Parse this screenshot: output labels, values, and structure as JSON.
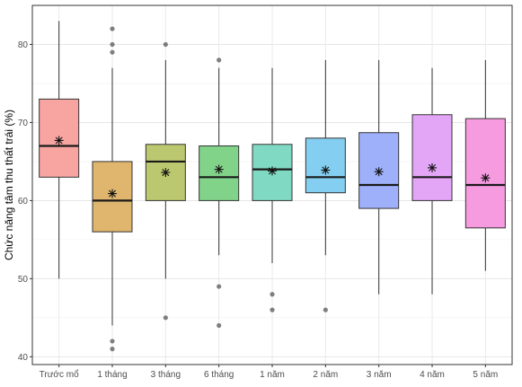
{
  "chart_data": {
    "type": "box",
    "title": "",
    "xlabel": "",
    "ylabel": "Chức năng tâm thu thất trái (%)",
    "ylim": [
      39,
      85
    ],
    "yticks": [
      40,
      50,
      60,
      70,
      80
    ],
    "grid": true,
    "legend": "none",
    "mean_marker": "asterisk",
    "categories": [
      "Trước mổ",
      "1 tháng",
      "3 tháng",
      "6 tháng",
      "1 năm",
      "2 năm",
      "3 năm",
      "4 năm",
      "5 năm"
    ],
    "colors": [
      "#f8a5a2",
      "#e0b56e",
      "#bcc86f",
      "#82d38a",
      "#80dac3",
      "#84cff1",
      "#9fb0fb",
      "#e3a5f6",
      "#f79be1"
    ],
    "boxes": [
      {
        "category": "Trước mổ",
        "whisker_low": 50,
        "q1": 63,
        "median": 67,
        "q3": 73,
        "whisker_high": 83,
        "mean": 67.7,
        "outliers": []
      },
      {
        "category": "1 tháng",
        "whisker_low": 44,
        "q1": 56,
        "median": 60,
        "q3": 65,
        "whisker_high": 77,
        "mean": 60.9,
        "outliers": [
          41,
          42,
          79,
          80,
          82
        ]
      },
      {
        "category": "3 tháng",
        "whisker_low": 50,
        "q1": 60,
        "median": 65,
        "q3": 67.2,
        "whisker_high": 78,
        "mean": 63.6,
        "outliers": [
          45,
          80
        ]
      },
      {
        "category": "6 tháng",
        "whisker_low": 53,
        "q1": 60,
        "median": 63,
        "q3": 67,
        "whisker_high": 77,
        "mean": 64.0,
        "outliers": [
          44,
          49,
          78
        ]
      },
      {
        "category": "1 năm",
        "whisker_low": 52,
        "q1": 60,
        "median": 64,
        "q3": 67.2,
        "whisker_high": 77,
        "mean": 63.8,
        "outliers": [
          46,
          48
        ]
      },
      {
        "category": "2 năm",
        "whisker_low": 53,
        "q1": 61,
        "median": 63,
        "q3": 68,
        "whisker_high": 78,
        "mean": 63.9,
        "outliers": [
          46
        ]
      },
      {
        "category": "3 năm",
        "whisker_low": 48,
        "q1": 59,
        "median": 62,
        "q3": 68.7,
        "whisker_high": 78,
        "mean": 63.7,
        "outliers": []
      },
      {
        "category": "4 năm",
        "whisker_low": 48,
        "q1": 60,
        "median": 63,
        "q3": 71,
        "whisker_high": 77,
        "mean": 64.2,
        "outliers": []
      },
      {
        "category": "5 năm",
        "whisker_low": 51,
        "q1": 56.5,
        "median": 62,
        "q3": 70.5,
        "whisker_high": 78,
        "mean": 62.9,
        "outliers": []
      }
    ]
  }
}
